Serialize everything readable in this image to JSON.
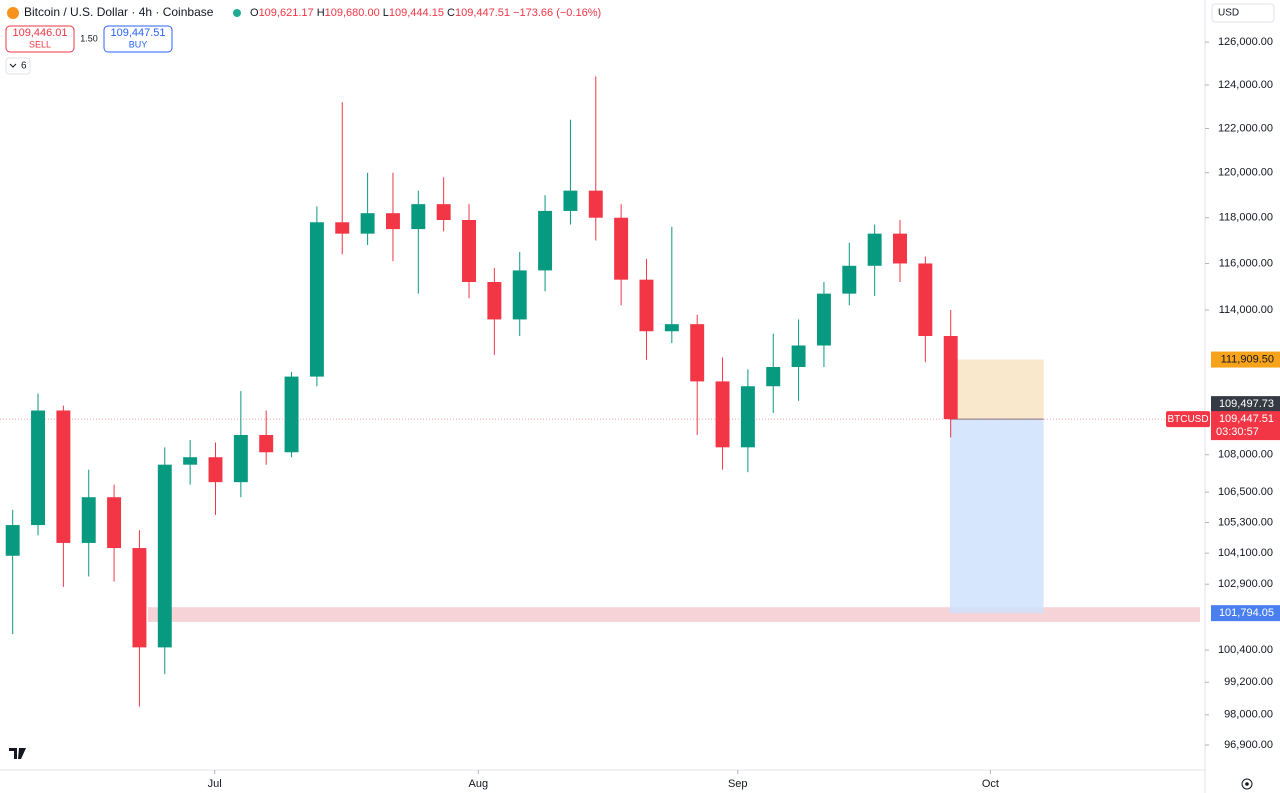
{
  "header": {
    "title": "Bitcoin / U.S. Dollar · 4h · Coinbase",
    "ohlc": [
      {
        "key": "O",
        "value": "109,621.17"
      },
      {
        "key": "H",
        "value": "109,680.00"
      },
      {
        "key": "L",
        "value": "109,444.15"
      },
      {
        "key": "C",
        "value": "109,447.51"
      }
    ],
    "change": "−173.66 (−0.16%)",
    "sell_price": "109,446.01",
    "sell": "SELL",
    "spread": "1.50",
    "buy_price": "109,447.51",
    "buy": "BUY",
    "indicators": "6",
    "currency": "USD"
  },
  "chart_data": {
    "type": "candlestick",
    "log_scale": true,
    "grid": false,
    "up_color": "#089981",
    "down_color": "#f23645",
    "xlim": [
      0,
      142
    ],
    "xticks": [
      {
        "value": 25.4,
        "label": "Jul"
      },
      {
        "value": 56.6,
        "label": "Aug"
      },
      {
        "value": 87.3,
        "label": "Sep"
      },
      {
        "value": 117.2,
        "label": "Oct"
      }
    ],
    "ylim": [
      96000,
      128000
    ],
    "yticks": [
      {
        "value": 126000,
        "label": "126,000.00"
      },
      {
        "value": 124000,
        "label": "124,000.00"
      },
      {
        "value": 122000,
        "label": "122,000.00"
      },
      {
        "value": 120000,
        "label": "120,000.00"
      },
      {
        "value": 118000,
        "label": "118,000.00"
      },
      {
        "value": 116000,
        "label": "116,000.00"
      },
      {
        "value": 114000,
        "label": "114,000.00"
      },
      {
        "value": 108000,
        "label": "108,000.00"
      },
      {
        "value": 106500,
        "label": "106,500.00"
      },
      {
        "value": 105300,
        "label": "105,300.00"
      },
      {
        "value": 104100,
        "label": "104,100.00"
      },
      {
        "value": 102900,
        "label": "102,900.00"
      },
      {
        "value": 100400,
        "label": "100,400.00"
      },
      {
        "value": 99200,
        "label": "99,200.00"
      },
      {
        "value": 98000,
        "label": "98,000.00"
      },
      {
        "value": 96900,
        "label": "96,900.00"
      }
    ],
    "x": [
      1.5,
      4.5,
      7.5,
      10.5,
      13.5,
      16.5,
      19.5,
      22.5,
      25.5,
      28.5,
      31.5,
      34.5,
      37.5,
      40.5,
      43.5,
      46.5,
      49.5,
      52.5,
      55.5,
      58.5,
      61.5,
      64.5,
      67.5,
      70.5,
      73.5,
      76.5,
      79.5,
      82.5,
      85.5,
      88.5,
      91.5,
      94.5,
      97.5,
      100.5,
      103.5,
      106.5,
      109.5,
      112.5
    ],
    "open": [
      104000,
      105200,
      109800,
      104500,
      106300,
      104300,
      100500,
      107600,
      107900,
      106900,
      108800,
      108100,
      111200,
      117800,
      117300,
      118200,
      117500,
      118600,
      117900,
      115200,
      113600,
      115700,
      118300,
      119200,
      118000,
      115300,
      113100,
      113400,
      111000,
      108300,
      110800,
      111600,
      112500,
      114700,
      115900,
      117300,
      116000,
      112900
    ],
    "high": [
      105800,
      110500,
      110000,
      107400,
      106800,
      105000,
      108300,
      108600,
      108500,
      110600,
      109800,
      111400,
      118500,
      123200,
      120000,
      120000,
      119200,
      119800,
      118600,
      115800,
      116500,
      119000,
      122400,
      124400,
      118600,
      116200,
      117600,
      113800,
      112000,
      111500,
      113000,
      113600,
      115200,
      116900,
      117700,
      117900,
      116300,
      114000
    ],
    "low": [
      101000,
      104800,
      102800,
      103200,
      103000,
      98300,
      99500,
      106800,
      105600,
      106300,
      107600,
      107900,
      110800,
      116400,
      116800,
      116100,
      114700,
      117400,
      114500,
      112100,
      112900,
      114800,
      117700,
      117000,
      114200,
      111900,
      112600,
      108800,
      107400,
      107300,
      109700,
      110200,
      111600,
      114200,
      114600,
      115200,
      111800,
      108700
    ],
    "close": [
      105200,
      109800,
      104500,
      106300,
      104300,
      100500,
      107600,
      107900,
      106900,
      108800,
      108100,
      111200,
      117800,
      117300,
      118200,
      117500,
      118600,
      117900,
      115200,
      113600,
      115700,
      118300,
      119200,
      118000,
      115300,
      113100,
      113400,
      111000,
      108300,
      110800,
      111600,
      112500,
      114700,
      115900,
      117300,
      116000,
      112900,
      109447.51
    ],
    "levels": [
      {
        "value": 111909.5,
        "label": "111,909.50",
        "color": "#f7a21b"
      },
      {
        "value": 109497.73,
        "label": "109,497.73",
        "color": "#363a45"
      },
      {
        "value": 101794.05,
        "label": "101,794.05",
        "color": "#4a7ff0"
      }
    ],
    "last_price": {
      "value": 109447.51,
      "label": "109,447.51",
      "color": "#f23645"
    },
    "symbol": "BTCUSD",
    "countdown": "03:30:57",
    "position_x": [
      112.4,
      123.5
    ],
    "zone": {
      "x_start": 17.5,
      "range": [
        101460,
        102020
      ],
      "color": "#f2c4c9"
    }
  }
}
